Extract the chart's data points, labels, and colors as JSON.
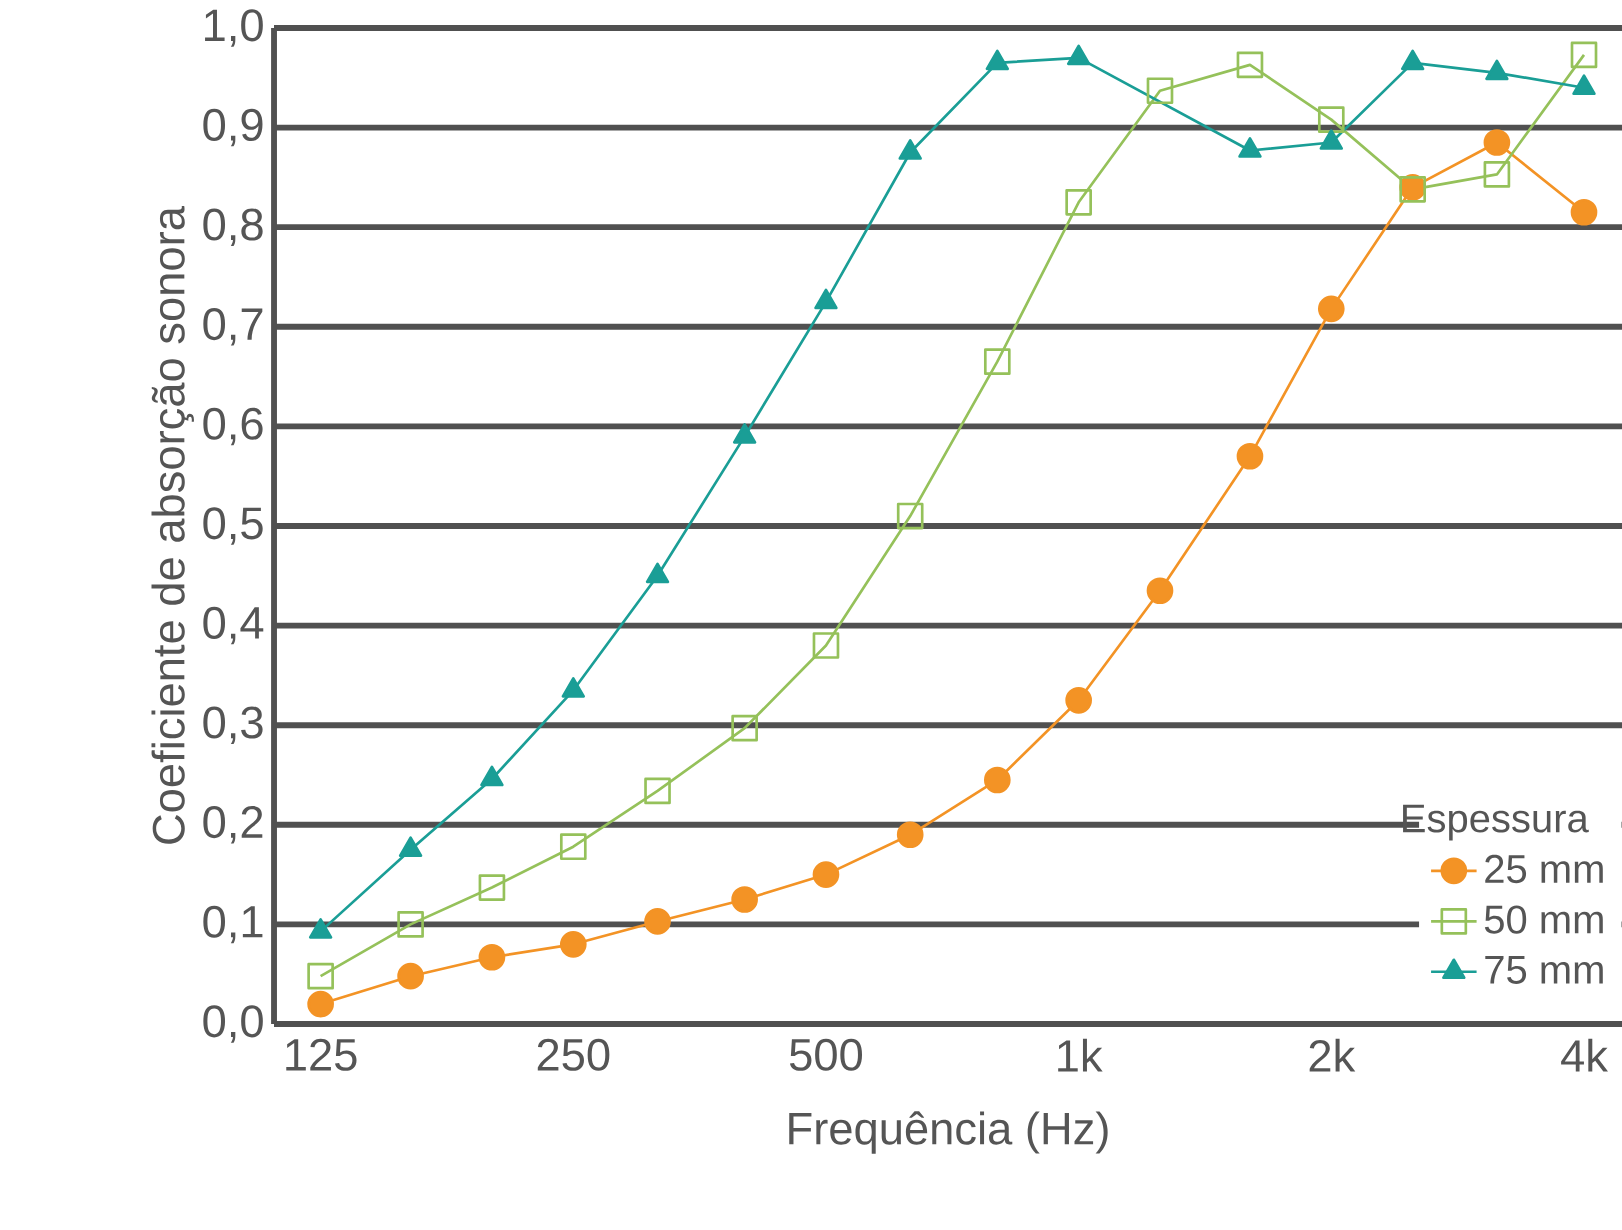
{
  "chart_data": {
    "type": "line",
    "xlabel": "Frequência (Hz)",
    "ylabel": "Coeficiente de absorção sonora",
    "legend_title": "Espessura",
    "log": "x",
    "x": [
      125,
      160,
      200,
      250,
      315,
      400,
      500,
      630,
      800,
      1000,
      1250,
      1600,
      2000,
      2500,
      3150,
      4000
    ],
    "series": [
      {
        "name": "25 mm",
        "color": "#f39325",
        "marker": "circle",
        "values": [
          0.02,
          0.048,
          0.067,
          0.08,
          0.103,
          0.125,
          0.15,
          0.19,
          0.245,
          0.325,
          0.435,
          0.57,
          0.718,
          0.84,
          0.885,
          0.815
        ]
      },
      {
        "name": "50 mm",
        "color": "#95c15a",
        "marker": "square",
        "values": [
          0.048,
          0.1,
          0.137,
          0.178,
          0.234,
          0.297,
          0.38,
          0.51,
          0.665,
          0.825,
          0.937,
          0.963,
          0.908,
          0.838,
          0.853,
          0.973
        ]
      },
      {
        "name": "75 mm",
        "color": "#1a9e96",
        "marker": "triangle",
        "x": [
          125,
          160,
          200,
          250,
          315,
          400,
          500,
          630,
          800,
          1000,
          1600,
          2000,
          2500,
          3150,
          4000
        ],
        "values": [
          0.093,
          0.175,
          0.246,
          0.335,
          0.45,
          0.59,
          0.725,
          0.875,
          0.965,
          0.97,
          0.877,
          0.885,
          0.965,
          0.955,
          0.94
        ]
      }
    ],
    "xlim": [
      110,
      4440
    ],
    "ylim": [
      0,
      1.0
    ],
    "xticks": [
      125,
      250,
      500,
      {
        "value": 1000,
        "label": "1k"
      },
      {
        "value": 2000,
        "label": "2k"
      },
      {
        "value": 4000,
        "label": "4k"
      }
    ],
    "yticks": [
      {
        "value": 0,
        "label": "0,0"
      },
      {
        "value": 0.1,
        "label": "0,1"
      },
      {
        "value": 0.2,
        "label": "0,2"
      },
      {
        "value": 0.3,
        "label": "0,3"
      },
      {
        "value": 0.4,
        "label": "0,4"
      },
      {
        "value": 0.5,
        "label": "0,5"
      },
      {
        "value": 0.6,
        "label": "0,6"
      },
      {
        "value": 0.7,
        "label": "0,7"
      },
      {
        "value": 0.8,
        "label": "0,8"
      },
      {
        "value": 0.9,
        "label": "0,9"
      },
      {
        "value": 1.0,
        "label": "1,0"
      }
    ],
    "grid": "y",
    "legend": "bottom right",
    "line_style": "solid"
  }
}
